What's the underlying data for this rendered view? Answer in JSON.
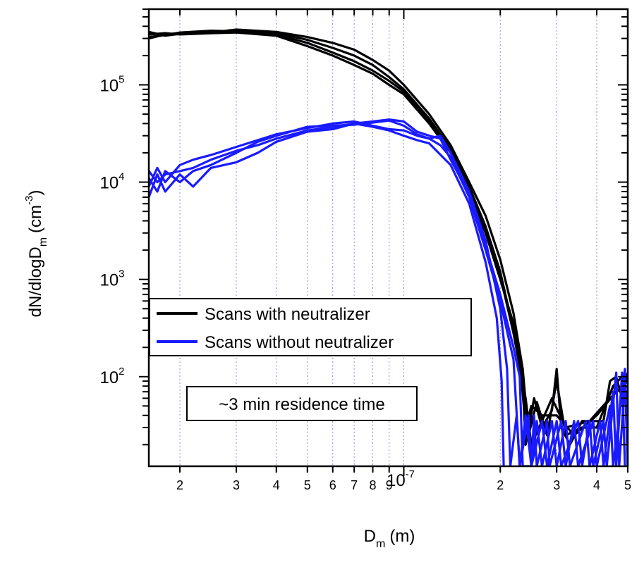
{
  "chart_data": {
    "type": "line",
    "xlabel": {
      "main": "D",
      "sub": "m",
      "unit": "(m)"
    },
    "ylabel": {
      "main": "dN/dlogD",
      "sub": "m",
      "unit_open": "(cm",
      "unit_sup": "-3",
      "unit_close": ")"
    },
    "x_scale": "log",
    "y_scale": "log",
    "xlim": [
      1.6e-08,
      5e-07
    ],
    "ylim": [
      12,
      600000
    ],
    "grid": "vertical-dotted",
    "x_ticks": [
      {
        "value": 2e-08,
        "label": "2"
      },
      {
        "value": 3e-08,
        "label": "3"
      },
      {
        "value": 4e-08,
        "label": "4"
      },
      {
        "value": 5e-08,
        "label": "5"
      },
      {
        "value": 6e-08,
        "label": "6"
      },
      {
        "value": 7e-08,
        "label": "7"
      },
      {
        "value": 8e-08,
        "label": "8"
      },
      {
        "value": 9e-08,
        "label": "9"
      },
      {
        "value": 2e-07,
        "label": "2"
      },
      {
        "value": 3e-07,
        "label": "3"
      },
      {
        "value": 4e-07,
        "label": "4"
      },
      {
        "value": 5e-07,
        "label": "5"
      }
    ],
    "x_decade_label": {
      "value": 1e-07,
      "base": "10",
      "exp": "-7"
    },
    "y_ticks": [
      {
        "value": 100,
        "base": "10",
        "exp": "2"
      },
      {
        "value": 1000,
        "base": "10",
        "exp": "3"
      },
      {
        "value": 10000,
        "base": "10",
        "exp": "4"
      },
      {
        "value": 100000,
        "base": "10",
        "exp": "5"
      }
    ],
    "legend": {
      "placement": "lower-left",
      "entries": [
        {
          "label": "Scans with neutralizer",
          "color": "#000000"
        },
        {
          "label": "Scans without neutralizer",
          "color": "#1a1aff"
        }
      ]
    },
    "annotation": "~3 min residence time",
    "series": [
      {
        "color": "#000000",
        "points": [
          [
            1.6e-08,
            300000
          ],
          [
            1.8e-08,
            330000
          ],
          [
            2e-08,
            340000
          ],
          [
            2.5e-08,
            350000
          ],
          [
            3e-08,
            360000
          ],
          [
            4e-08,
            340000
          ],
          [
            5e-08,
            290000
          ],
          [
            6e-08,
            240000
          ],
          [
            7e-08,
            200000
          ],
          [
            8e-08,
            160000
          ],
          [
            9e-08,
            120000
          ],
          [
            1e-07,
            90000
          ],
          [
            1.2e-07,
            45000
          ],
          [
            1.4e-07,
            22000
          ],
          [
            1.6e-07,
            9000
          ],
          [
            1.8e-07,
            3500
          ],
          [
            2e-07,
            1200
          ],
          [
            2.2e-07,
            300
          ],
          [
            2.35e-07,
            90
          ],
          [
            2.4e-07,
            20
          ],
          [
            2.55e-07,
            60
          ],
          [
            2.7e-07,
            30
          ],
          [
            2.9e-07,
            45
          ],
          [
            3e-07,
            120
          ],
          [
            3.1e-07,
            30
          ],
          [
            3.3e-07,
            20
          ],
          [
            3.6e-07,
            35
          ],
          [
            3.8e-07,
            35
          ],
          [
            4.2e-07,
            35
          ],
          [
            4.4e-07,
            90
          ],
          [
            4.6e-07,
            100
          ],
          [
            4.8e-07,
            60
          ],
          [
            5e-07,
            110
          ]
        ]
      },
      {
        "color": "#000000",
        "points": [
          [
            1.6e-08,
            350000
          ],
          [
            1.8e-08,
            320000
          ],
          [
            2e-08,
            335000
          ],
          [
            2.5e-08,
            345000
          ],
          [
            3e-08,
            370000
          ],
          [
            4e-08,
            350000
          ],
          [
            5e-08,
            310000
          ],
          [
            6e-08,
            270000
          ],
          [
            7e-08,
            230000
          ],
          [
            8e-08,
            180000
          ],
          [
            9e-08,
            140000
          ],
          [
            1e-07,
            100000
          ],
          [
            1.2e-07,
            50000
          ],
          [
            1.4e-07,
            24000
          ],
          [
            1.6e-07,
            10000
          ],
          [
            1.8e-07,
            4500
          ],
          [
            2e-07,
            1600
          ],
          [
            2.2e-07,
            450
          ],
          [
            2.35e-07,
            120
          ],
          [
            2.45e-07,
            25
          ],
          [
            2.6e-07,
            55
          ],
          [
            2.8e-07,
            25
          ],
          [
            3e-07,
            90
          ],
          [
            3.2e-07,
            25
          ],
          [
            3.6e-07,
            30
          ],
          [
            4e-07,
            30
          ],
          [
            4.5e-07,
            80
          ],
          [
            4.8e-07,
            100
          ],
          [
            5e-07,
            60
          ]
        ]
      },
      {
        "color": "#000000",
        "points": [
          [
            1.6e-08,
            330000
          ],
          [
            1.8e-08,
            340000
          ],
          [
            2e-08,
            330000
          ],
          [
            2.5e-08,
            340000
          ],
          [
            3e-08,
            345000
          ],
          [
            4e-08,
            320000
          ],
          [
            5e-08,
            250000
          ],
          [
            6e-08,
            200000
          ],
          [
            7e-08,
            160000
          ],
          [
            8e-08,
            130000
          ],
          [
            9e-08,
            100000
          ],
          [
            1e-07,
            80000
          ],
          [
            1.2e-07,
            40000
          ],
          [
            1.4e-07,
            20000
          ],
          [
            1.6e-07,
            8000
          ],
          [
            1.8e-07,
            3000
          ],
          [
            2e-07,
            1000
          ],
          [
            2.2e-07,
            350
          ],
          [
            2.3e-07,
            150
          ],
          [
            2.4e-07,
            30
          ],
          [
            2.5e-07,
            50
          ],
          [
            2.7e-07,
            40
          ],
          [
            3e-07,
            40
          ],
          [
            3.4e-07,
            25
          ],
          [
            4e-07,
            40
          ],
          [
            4.6e-07,
            70
          ],
          [
            5e-07,
            80
          ]
        ]
      },
      {
        "color": "#000000",
        "points": [
          [
            1.6e-08,
            310000
          ],
          [
            1.8e-08,
            325000
          ],
          [
            2e-08,
            345000
          ],
          [
            2.5e-08,
            360000
          ],
          [
            3e-08,
            355000
          ],
          [
            4e-08,
            330000
          ],
          [
            5e-08,
            270000
          ],
          [
            6e-08,
            215000
          ],
          [
            7e-08,
            175000
          ],
          [
            8e-08,
            140000
          ],
          [
            9e-08,
            110000
          ],
          [
            1e-07,
            85000
          ],
          [
            1.2e-07,
            42000
          ],
          [
            1.4e-07,
            21000
          ],
          [
            1.6e-07,
            8500
          ],
          [
            1.8e-07,
            3200
          ],
          [
            2e-07,
            1100
          ],
          [
            2.2e-07,
            280
          ],
          [
            2.4e-07,
            60
          ],
          [
            2.5e-07,
            20
          ],
          [
            2.7e-07,
            35
          ],
          [
            2.9e-07,
            60
          ],
          [
            3.2e-07,
            30
          ],
          [
            3.8e-07,
            35
          ],
          [
            4.4e-07,
            60
          ],
          [
            5e-07,
            90
          ]
        ]
      },
      {
        "color": "#1a1aff",
        "points": [
          [
            1.6e-08,
            7000
          ],
          [
            1.7e-08,
            12000
          ],
          [
            1.8e-08,
            8000
          ],
          [
            2e-08,
            12000
          ],
          [
            2.2e-08,
            9000
          ],
          [
            2.5e-08,
            14000
          ],
          [
            3e-08,
            16000
          ],
          [
            3.5e-08,
            20000
          ],
          [
            4e-08,
            26000
          ],
          [
            5e-08,
            33000
          ],
          [
            6e-08,
            35000
          ],
          [
            7e-08,
            40000
          ],
          [
            8e-08,
            37000
          ],
          [
            9e-08,
            34000
          ],
          [
            1e-07,
            30000
          ],
          [
            1.1e-07,
            27000
          ],
          [
            1.2e-07,
            25000
          ],
          [
            1.4e-07,
            15000
          ],
          [
            1.6e-07,
            6000
          ],
          [
            1.8e-07,
            1500
          ],
          [
            1.95e-07,
            400
          ],
          [
            2.02e-07,
            90
          ],
          [
            2.05e-07,
            12
          ]
        ]
      },
      {
        "color": "#1a1aff",
        "points": [
          [
            1.6e-08,
            11000
          ],
          [
            1.7e-08,
            8000
          ],
          [
            1.8e-08,
            13000
          ],
          [
            2e-08,
            10000
          ],
          [
            2.2e-08,
            13000
          ],
          [
            2.5e-08,
            15000
          ],
          [
            3e-08,
            20000
          ],
          [
            3.5e-08,
            26000
          ],
          [
            4e-08,
            30000
          ],
          [
            5e-08,
            37000
          ],
          [
            6e-08,
            38000
          ],
          [
            7e-08,
            39000
          ],
          [
            8e-08,
            41000
          ],
          [
            9e-08,
            43000
          ],
          [
            1e-07,
            38000
          ],
          [
            1.1e-07,
            31000
          ],
          [
            1.2e-07,
            28000
          ],
          [
            1.3e-07,
            30000
          ],
          [
            1.4e-07,
            20000
          ],
          [
            1.6e-07,
            8000
          ],
          [
            1.8e-07,
            2500
          ],
          [
            2e-07,
            500
          ],
          [
            2.1e-07,
            120
          ],
          [
            2.15e-07,
            12
          ],
          [
            2.25e-07,
            40
          ],
          [
            2.3e-07,
            12
          ],
          [
            2.45e-07,
            40
          ],
          [
            2.5e-07,
            12
          ],
          [
            2.7e-07,
            35
          ],
          [
            2.8e-07,
            12
          ],
          [
            3e-07,
            35
          ],
          [
            3.1e-07,
            12
          ],
          [
            3.5e-07,
            35
          ],
          [
            3.6e-07,
            12
          ],
          [
            3.8e-07,
            35
          ],
          [
            3.9e-07,
            12
          ],
          [
            4.2e-07,
            35
          ],
          [
            4.3e-07,
            12
          ],
          [
            4.6e-07,
            110
          ],
          [
            4.7e-07,
            12
          ],
          [
            4.9e-07,
            90
          ],
          [
            5e-07,
            12
          ]
        ]
      },
      {
        "color": "#1a1aff",
        "points": [
          [
            1.6e-08,
            9000
          ],
          [
            1.7e-08,
            14000
          ],
          [
            1.8e-08,
            10000
          ],
          [
            2e-08,
            15000
          ],
          [
            2.2e-08,
            17000
          ],
          [
            2.5e-08,
            19000
          ],
          [
            3e-08,
            23000
          ],
          [
            3.5e-08,
            27000
          ],
          [
            4e-08,
            31000
          ],
          [
            5e-08,
            36000
          ],
          [
            6e-08,
            40000
          ],
          [
            7e-08,
            42000
          ],
          [
            8e-08,
            38000
          ],
          [
            9e-08,
            35000
          ],
          [
            1e-07,
            34000
          ],
          [
            1.1e-07,
            30000
          ],
          [
            1.2e-07,
            28000
          ],
          [
            1.3e-07,
            24000
          ],
          [
            1.4e-07,
            18000
          ],
          [
            1.6e-07,
            7000
          ],
          [
            1.8e-07,
            2000
          ],
          [
            2e-07,
            600
          ],
          [
            2.2e-07,
            150
          ],
          [
            2.3e-07,
            12
          ],
          [
            2.4e-07,
            40
          ],
          [
            2.5e-07,
            12
          ],
          [
            2.6e-07,
            35
          ],
          [
            2.7e-07,
            12
          ],
          [
            2.9e-07,
            35
          ],
          [
            3e-07,
            12
          ],
          [
            3.2e-07,
            35
          ],
          [
            3.3e-07,
            12
          ],
          [
            3.7e-07,
            35
          ],
          [
            3.8e-07,
            12
          ],
          [
            4.1e-07,
            35
          ],
          [
            4.2e-07,
            12
          ],
          [
            4.5e-07,
            70
          ],
          [
            4.6e-07,
            12
          ],
          [
            4.8e-07,
            110
          ],
          [
            4.9e-07,
            12
          ]
        ]
      },
      {
        "color": "#1a1aff",
        "points": [
          [
            1.6e-08,
            13000
          ],
          [
            1.7e-08,
            10000
          ],
          [
            1.8e-08,
            12000
          ],
          [
            2e-08,
            13000
          ],
          [
            2.2e-08,
            14000
          ],
          [
            2.5e-08,
            17000
          ],
          [
            3e-08,
            21000
          ],
          [
            3.5e-08,
            24000
          ],
          [
            4e-08,
            28000
          ],
          [
            5e-08,
            34000
          ],
          [
            6e-08,
            37000
          ],
          [
            7e-08,
            40000
          ],
          [
            8e-08,
            42000
          ],
          [
            9e-08,
            44000
          ],
          [
            1e-07,
            42000
          ],
          [
            1.1e-07,
            33000
          ],
          [
            1.2e-07,
            30000
          ],
          [
            1.3e-07,
            28000
          ],
          [
            1.4e-07,
            17000
          ],
          [
            1.6e-07,
            7500
          ],
          [
            1.8e-07,
            2200
          ],
          [
            2e-07,
            700
          ],
          [
            2.2e-07,
            200
          ],
          [
            2.3e-07,
            100
          ],
          [
            2.35e-07,
            12
          ],
          [
            2.5e-07,
            12
          ],
          [
            2.55e-07,
            40
          ],
          [
            2.6e-07,
            12
          ],
          [
            2.8e-07,
            35
          ],
          [
            2.85e-07,
            12
          ],
          [
            3.1e-07,
            35
          ],
          [
            3.2e-07,
            12
          ],
          [
            3.4e-07,
            35
          ],
          [
            3.5e-07,
            12
          ],
          [
            3.9e-07,
            35
          ],
          [
            4e-07,
            12
          ],
          [
            4.4e-07,
            50
          ],
          [
            4.5e-07,
            12
          ],
          [
            4.9e-07,
            120
          ],
          [
            5e-07,
            12
          ]
        ]
      }
    ]
  }
}
